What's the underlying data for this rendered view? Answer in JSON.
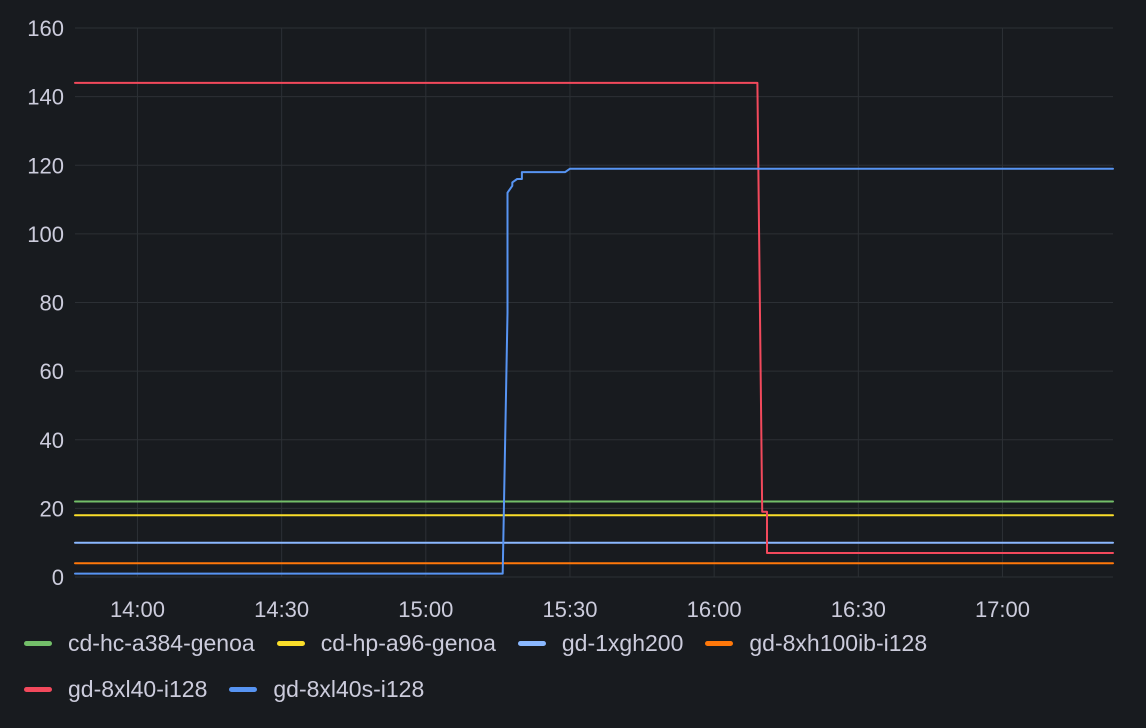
{
  "chart_data": {
    "type": "line",
    "title": "",
    "xlabel": "",
    "ylabel": "",
    "xlim": [
      "13:47",
      "17:23"
    ],
    "ylim": [
      0,
      160
    ],
    "x_ticks": [
      "14:00",
      "14:30",
      "15:00",
      "15:30",
      "16:00",
      "16:30",
      "17:00"
    ],
    "y_ticks": [
      0,
      20,
      40,
      60,
      80,
      100,
      120,
      140,
      160
    ],
    "grid": true,
    "legend_position": "bottom",
    "series": [
      {
        "name": "cd-hc-a384-genoa",
        "color": "#73bf69",
        "points": [
          [
            "13:47",
            22
          ],
          [
            "17:23",
            22
          ]
        ]
      },
      {
        "name": "cd-hp-a96-genoa",
        "color": "#fade2a",
        "points": [
          [
            "13:47",
            18
          ],
          [
            "17:23",
            18
          ]
        ]
      },
      {
        "name": "gd-1xgh200",
        "color": "#8ab8ff",
        "points": [
          [
            "13:47",
            10
          ],
          [
            "17:23",
            10
          ]
        ]
      },
      {
        "name": "gd-8xh100ib-i128",
        "color": "#ff780a",
        "points": [
          [
            "13:47",
            4
          ],
          [
            "17:23",
            4
          ]
        ]
      },
      {
        "name": "gd-8xl40-i128",
        "color": "#f2495c",
        "points": [
          [
            "13:47",
            144
          ],
          [
            "16:09",
            144
          ],
          [
            "16:10",
            19
          ],
          [
            "16:11",
            19
          ],
          [
            "16:11",
            7
          ],
          [
            "17:23",
            7
          ]
        ]
      },
      {
        "name": "gd-8xl40s-i128",
        "color": "#5794f2",
        "points": [
          [
            "13:47",
            1
          ],
          [
            "15:16",
            1
          ],
          [
            "15:17",
            77
          ],
          [
            "15:17",
            112
          ],
          [
            "15:18",
            114
          ],
          [
            "15:18",
            115
          ],
          [
            "15:19",
            116
          ],
          [
            "15:20",
            116
          ],
          [
            "15:20",
            118
          ],
          [
            "15:29",
            118
          ],
          [
            "15:30",
            119
          ],
          [
            "17:23",
            119
          ]
        ]
      }
    ]
  }
}
